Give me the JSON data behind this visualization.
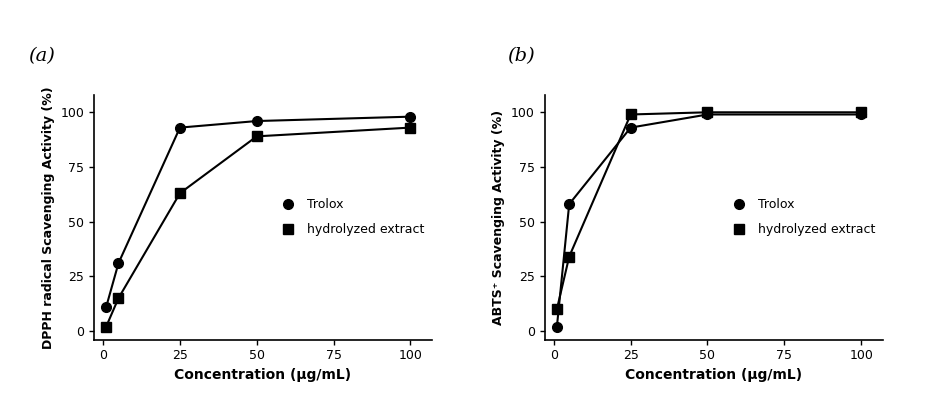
{
  "dpph": {
    "trolox_x": [
      1,
      5,
      25,
      50,
      100
    ],
    "trolox_y": [
      11,
      31,
      93,
      96,
      98
    ],
    "extract_x": [
      1,
      5,
      25,
      50,
      100
    ],
    "extract_y": [
      2,
      15,
      63,
      89,
      93
    ],
    "ylabel": "DPPH radical Scavenging Activity (%)",
    "panel_label": "(a)"
  },
  "abts": {
    "trolox_x": [
      1,
      5,
      25,
      50,
      100
    ],
    "trolox_y": [
      2,
      58,
      93,
      99,
      99
    ],
    "extract_x": [
      1,
      5,
      25,
      50,
      100
    ],
    "extract_y": [
      10,
      34,
      99,
      100,
      100
    ],
    "ylabel": "ABTS⁺ Scavenging Activity (%)",
    "panel_label": "(b)"
  },
  "xlabel": "Concentration (µg/mL)",
  "xticks": [
    0,
    25,
    50,
    75,
    100
  ],
  "yticks": [
    0,
    25,
    50,
    75,
    100
  ],
  "legend_trolox": "Trolox",
  "legend_extract": "hydrolyzed extract",
  "marker_trolox": "o",
  "marker_extract": "s",
  "color": "black",
  "markersize": 7,
  "linewidth": 1.5,
  "xlim": [
    -3,
    107
  ],
  "ylim": [
    -4,
    108
  ]
}
